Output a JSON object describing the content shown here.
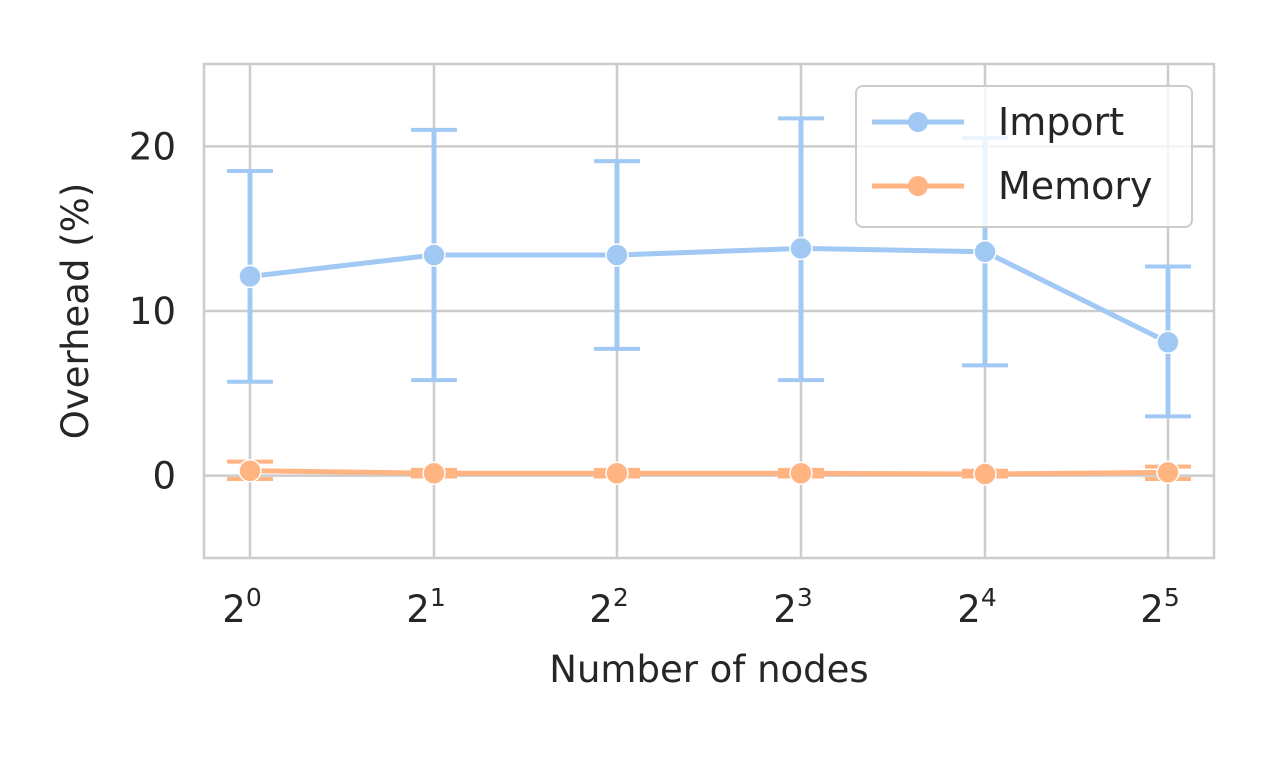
{
  "chart_data": {
    "type": "line",
    "xlabel": "Number of nodes",
    "ylabel": "Overhead (%)",
    "x_scale": "log2",
    "x": [
      1,
      2,
      4,
      8,
      16,
      32
    ],
    "x_tick_labels": [
      {
        "base": "2",
        "exp": "0"
      },
      {
        "base": "2",
        "exp": "1"
      },
      {
        "base": "2",
        "exp": "2"
      },
      {
        "base": "2",
        "exp": "3"
      },
      {
        "base": "2",
        "exp": "4"
      },
      {
        "base": "2",
        "exp": "5"
      }
    ],
    "ylim": [
      -5,
      25
    ],
    "y_ticks": [
      "0",
      "10",
      "20"
    ],
    "y_tick_values": [
      0,
      10,
      20
    ],
    "grid": true,
    "legend_position": "top-right",
    "series": [
      {
        "name": "Import",
        "color": "#a1c9f4",
        "values": [
          12.1,
          13.4,
          13.4,
          13.8,
          13.6,
          8.1
        ],
        "err_low": [
          5.7,
          5.8,
          7.7,
          5.8,
          6.7,
          3.6
        ],
        "err_high": [
          18.5,
          21.0,
          19.1,
          21.7,
          20.5,
          12.7
        ]
      },
      {
        "name": "Memory",
        "color": "#ffb482",
        "values": [
          0.3,
          0.15,
          0.15,
          0.15,
          0.1,
          0.2
        ],
        "err_low": [
          -0.2,
          -0.05,
          -0.05,
          -0.05,
          -0.05,
          -0.2
        ],
        "err_high": [
          0.85,
          0.35,
          0.35,
          0.35,
          0.3,
          0.55
        ]
      }
    ]
  }
}
